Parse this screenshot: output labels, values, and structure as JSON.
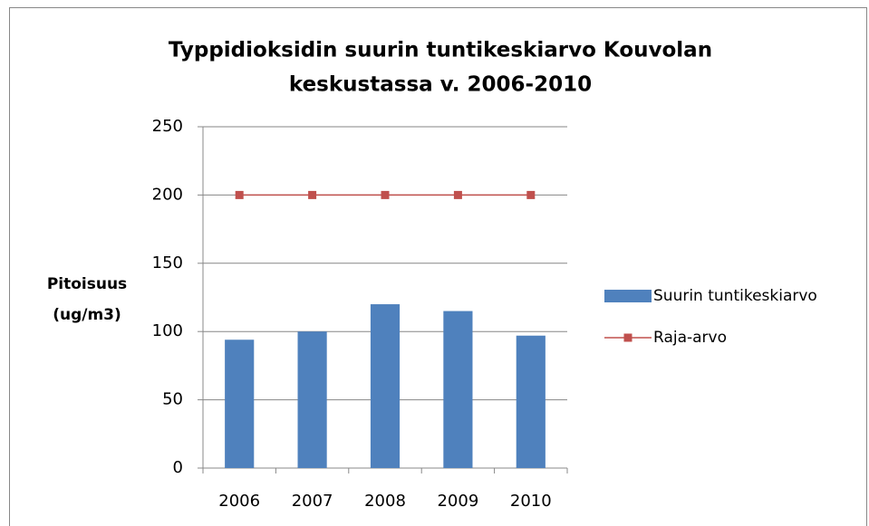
{
  "chart_data": {
    "type": "bar",
    "title": [
      "Typpidioksidin  suurin tuntikeskiarvo Kouvolan",
      "keskustassa v. 2006-2010"
    ],
    "y_label": [
      "Pitoisuus",
      "(ug/m3)"
    ],
    "categories": [
      "2006",
      "2007",
      "2008",
      "2009",
      "2010"
    ],
    "series": [
      {
        "name": "Suurin tuntikeskiarvo",
        "type": "bar",
        "color": "#4f81bd",
        "values": [
          94,
          100,
          120,
          115,
          97
        ]
      },
      {
        "name": "Raja-arvo",
        "type": "line",
        "color": "#c0504d",
        "values": [
          200,
          200,
          200,
          200,
          200
        ]
      }
    ],
    "ylim": [
      0,
      250
    ],
    "yticks": [
      0,
      50,
      100,
      150,
      200,
      250
    ],
    "grid": true,
    "legend": "right"
  }
}
